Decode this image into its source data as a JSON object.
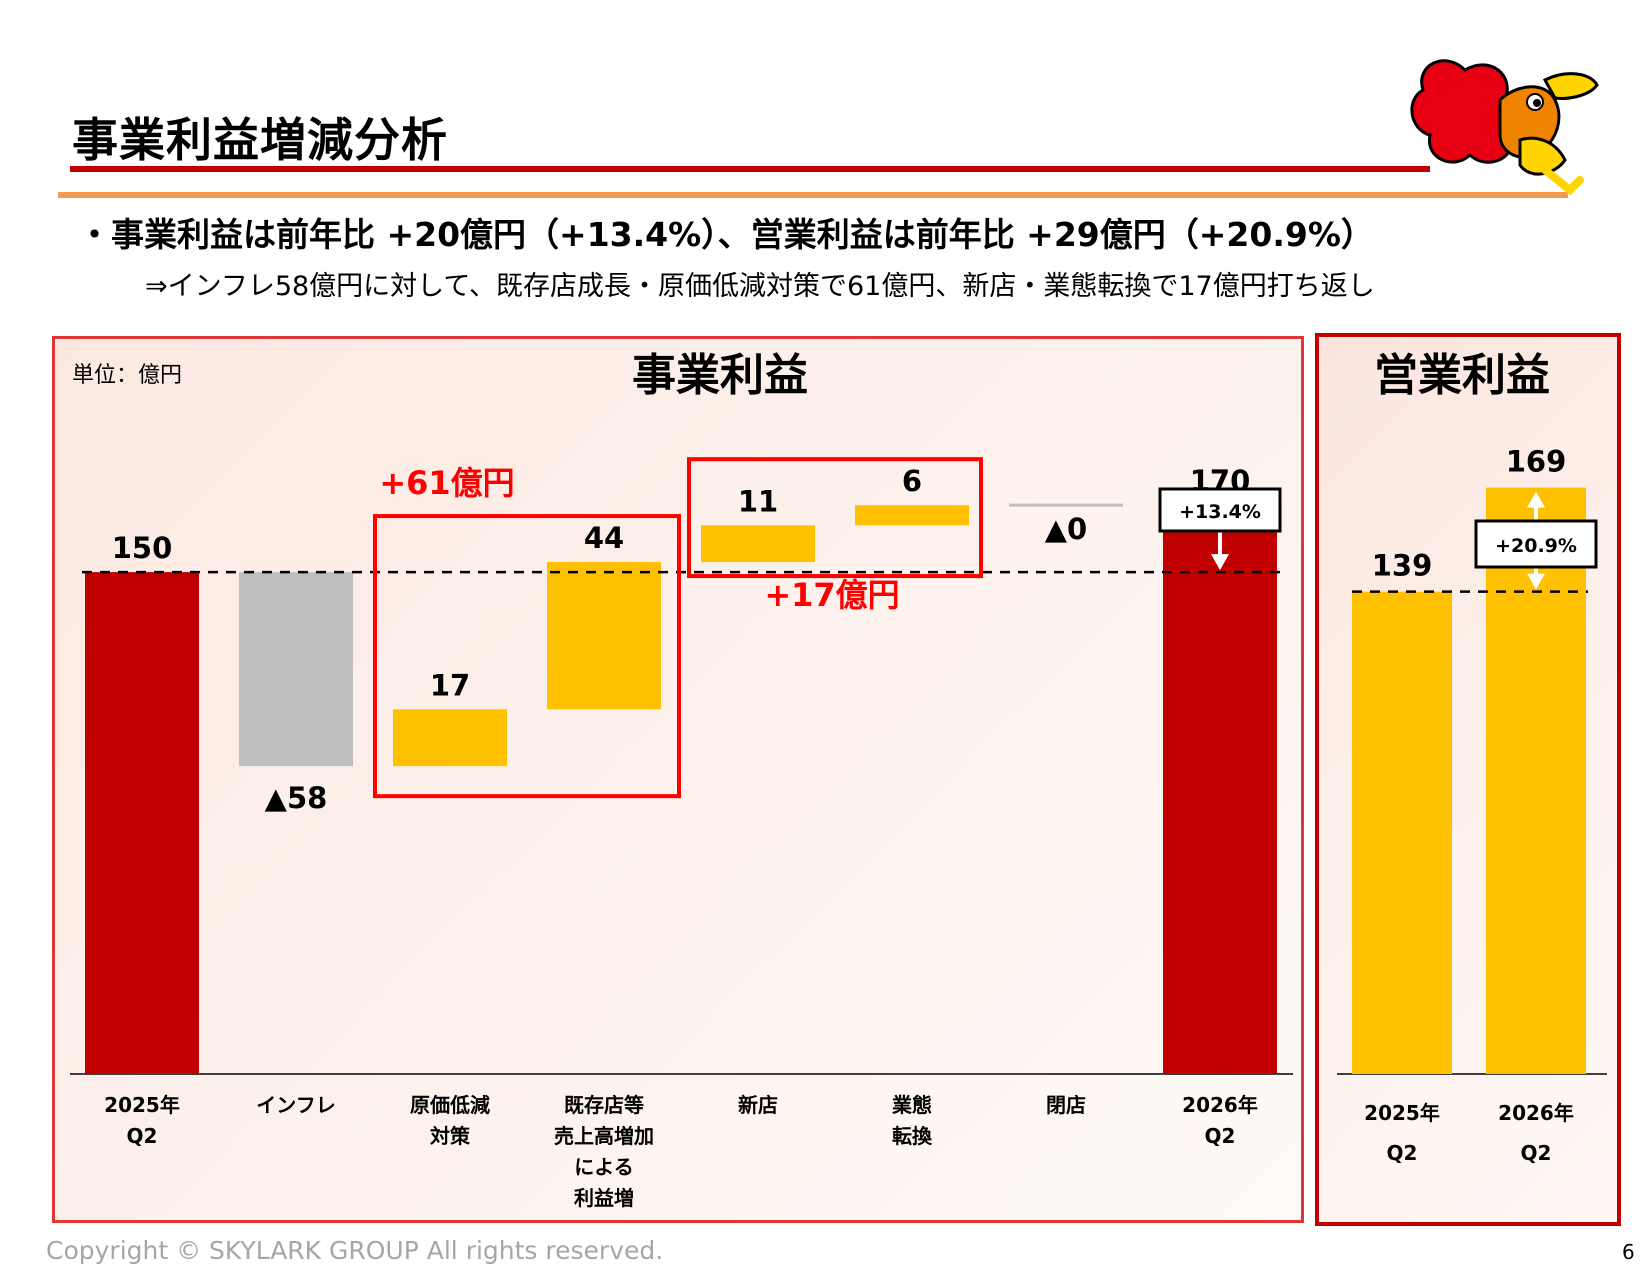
{
  "slide": {
    "title": "事業利益増減分析",
    "bullet1": "・事業利益は前年比 +20億円（+13.4%）、営業利益は前年比 +29億円（+20.9%）",
    "bullet2": "⇒インフレ58億円に対して、既存店成長・原価低減対策で61億円、新店・業態転換で17億円打ち返し",
    "copyright": "Copyright © SKYLARK GROUP All rights reserved.",
    "page_number": "6"
  },
  "colors": {
    "dark_red": "#c00000",
    "highlight_red": "#ff0000",
    "yellow": "#ffc000",
    "gray": "#bfbfbf",
    "orange_line": "#f39a52"
  },
  "mascot": {
    "icon": "mascot-chicken-icon"
  },
  "chart_data": [
    {
      "type": "bar",
      "subtype": "waterfall",
      "title": "事業利益",
      "unit_label": "単位：億円",
      "categories": [
        "2025年\nQ2",
        "インフレ",
        "原価低減\n対策",
        "既存店等\n売上高増加\nによる\n利益増",
        "新店",
        "業態\n転換",
        "閉店",
        "2026年\nQ2"
      ],
      "values": [
        150,
        -58,
        17,
        44,
        11,
        6,
        0,
        170
      ],
      "value_labels": [
        "150",
        "▲58",
        "17",
        "44",
        "11",
        "6",
        "▲0",
        "170"
      ],
      "kinds": [
        "total",
        "decrease",
        "increase",
        "increase",
        "increase",
        "increase",
        "decrease",
        "total"
      ],
      "ylim": [
        0,
        190
      ],
      "annotations": {
        "group1_label": "+61億円",
        "group2_label": "+17億円",
        "growth_label": "+13.4%"
      }
    },
    {
      "type": "bar",
      "title": "営業利益",
      "categories": [
        "2025年\nQ2",
        "2026年\nQ2"
      ],
      "values": [
        139,
        169
      ],
      "value_labels": [
        "139",
        "169"
      ],
      "ylim": [
        0,
        190
      ],
      "annotations": {
        "growth_label": "+20.9%"
      }
    }
  ]
}
